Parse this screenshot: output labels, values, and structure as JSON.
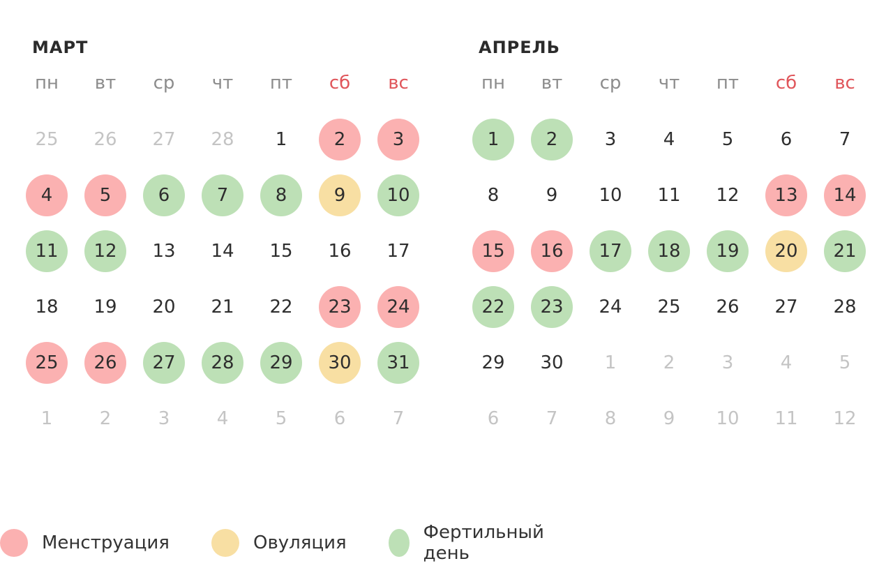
{
  "colors": {
    "menstruation": "#fbb1b1",
    "ovulation": "#f8dfa3",
    "fertile": "#bde0b6",
    "weekend_text": "#e0565b"
  },
  "weekdays": [
    "пн",
    "вт",
    "ср",
    "чт",
    "пт",
    "сб",
    "вс"
  ],
  "months": [
    {
      "title": "МАРТ",
      "weeks": [
        [
          {
            "d": "25",
            "t": "other"
          },
          {
            "d": "26",
            "t": "other"
          },
          {
            "d": "27",
            "t": "other"
          },
          {
            "d": "28",
            "t": "other"
          },
          {
            "d": "1",
            "t": ""
          },
          {
            "d": "2",
            "t": "menstruation"
          },
          {
            "d": "3",
            "t": "menstruation"
          }
        ],
        [
          {
            "d": "4",
            "t": "menstruation"
          },
          {
            "d": "5",
            "t": "menstruation"
          },
          {
            "d": "6",
            "t": "fertile"
          },
          {
            "d": "7",
            "t": "fertile"
          },
          {
            "d": "8",
            "t": "fertile"
          },
          {
            "d": "9",
            "t": "ovulation"
          },
          {
            "d": "10",
            "t": "fertile"
          }
        ],
        [
          {
            "d": "11",
            "t": "fertile"
          },
          {
            "d": "12",
            "t": "fertile"
          },
          {
            "d": "13",
            "t": ""
          },
          {
            "d": "14",
            "t": ""
          },
          {
            "d": "15",
            "t": ""
          },
          {
            "d": "16",
            "t": ""
          },
          {
            "d": "17",
            "t": ""
          }
        ],
        [
          {
            "d": "18",
            "t": ""
          },
          {
            "d": "19",
            "t": ""
          },
          {
            "d": "20",
            "t": ""
          },
          {
            "d": "21",
            "t": ""
          },
          {
            "d": "22",
            "t": ""
          },
          {
            "d": "23",
            "t": "menstruation"
          },
          {
            "d": "24",
            "t": "menstruation"
          }
        ],
        [
          {
            "d": "25",
            "t": "menstruation"
          },
          {
            "d": "26",
            "t": "menstruation"
          },
          {
            "d": "27",
            "t": "fertile"
          },
          {
            "d": "28",
            "t": "fertile"
          },
          {
            "d": "29",
            "t": "fertile"
          },
          {
            "d": "30",
            "t": "ovulation"
          },
          {
            "d": "31",
            "t": "fertile"
          }
        ],
        [
          {
            "d": "1",
            "t": "other"
          },
          {
            "d": "2",
            "t": "other"
          },
          {
            "d": "3",
            "t": "other"
          },
          {
            "d": "4",
            "t": "other"
          },
          {
            "d": "5",
            "t": "other"
          },
          {
            "d": "6",
            "t": "other"
          },
          {
            "d": "7",
            "t": "other"
          }
        ]
      ]
    },
    {
      "title": "АПРЕЛЬ",
      "weeks": [
        [
          {
            "d": "1",
            "t": "fertile"
          },
          {
            "d": "2",
            "t": "fertile"
          },
          {
            "d": "3",
            "t": ""
          },
          {
            "d": "4",
            "t": ""
          },
          {
            "d": "5",
            "t": ""
          },
          {
            "d": "6",
            "t": ""
          },
          {
            "d": "7",
            "t": ""
          }
        ],
        [
          {
            "d": "8",
            "t": ""
          },
          {
            "d": "9",
            "t": ""
          },
          {
            "d": "10",
            "t": ""
          },
          {
            "d": "11",
            "t": ""
          },
          {
            "d": "12",
            "t": ""
          },
          {
            "d": "13",
            "t": "menstruation"
          },
          {
            "d": "14",
            "t": "menstruation"
          }
        ],
        [
          {
            "d": "15",
            "t": "menstruation"
          },
          {
            "d": "16",
            "t": "menstruation"
          },
          {
            "d": "17",
            "t": "fertile"
          },
          {
            "d": "18",
            "t": "fertile"
          },
          {
            "d": "19",
            "t": "fertile"
          },
          {
            "d": "20",
            "t": "ovulation"
          },
          {
            "d": "21",
            "t": "fertile"
          }
        ],
        [
          {
            "d": "22",
            "t": "fertile"
          },
          {
            "d": "23",
            "t": "fertile"
          },
          {
            "d": "24",
            "t": ""
          },
          {
            "d": "25",
            "t": ""
          },
          {
            "d": "26",
            "t": ""
          },
          {
            "d": "27",
            "t": ""
          },
          {
            "d": "28",
            "t": ""
          }
        ],
        [
          {
            "d": "29",
            "t": ""
          },
          {
            "d": "30",
            "t": ""
          },
          {
            "d": "1",
            "t": "other"
          },
          {
            "d": "2",
            "t": "other"
          },
          {
            "d": "3",
            "t": "other"
          },
          {
            "d": "4",
            "t": "other"
          },
          {
            "d": "5",
            "t": "other"
          }
        ],
        [
          {
            "d": "6",
            "t": "other"
          },
          {
            "d": "7",
            "t": "other"
          },
          {
            "d": "8",
            "t": "other"
          },
          {
            "d": "9",
            "t": "other"
          },
          {
            "d": "10",
            "t": "other"
          },
          {
            "d": "11",
            "t": "other"
          },
          {
            "d": "12",
            "t": "other"
          }
        ]
      ]
    }
  ],
  "legend": [
    {
      "label": "Менструация",
      "type": "menstruation"
    },
    {
      "label": "Овуляция",
      "type": "ovulation"
    },
    {
      "label": "Фертильный день",
      "type": "fertile"
    }
  ]
}
